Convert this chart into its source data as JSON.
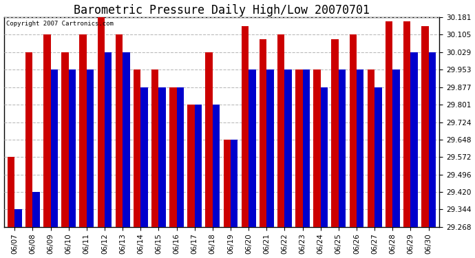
{
  "title": "Barometric Pressure Daily High/Low 20070701",
  "copyright": "Copyright 2007 Cartronics.com",
  "dates": [
    "06/07",
    "06/08",
    "06/09",
    "06/10",
    "06/11",
    "06/12",
    "06/13",
    "06/14",
    "06/15",
    "06/16",
    "06/17",
    "06/18",
    "06/19",
    "06/20",
    "06/21",
    "06/22",
    "06/23",
    "06/24",
    "06/25",
    "06/26",
    "06/27",
    "06/28",
    "06/29",
    "06/30"
  ],
  "highs": [
    29.572,
    30.029,
    30.105,
    30.029,
    30.105,
    30.181,
    30.105,
    29.953,
    29.953,
    29.877,
    29.801,
    30.029,
    29.648,
    30.143,
    30.086,
    30.105,
    29.953,
    29.953,
    30.086,
    30.105,
    29.953,
    30.162,
    30.162,
    30.143
  ],
  "lows": [
    29.344,
    29.42,
    29.953,
    29.953,
    29.953,
    30.029,
    30.029,
    29.877,
    29.877,
    29.877,
    29.801,
    29.801,
    29.648,
    29.953,
    29.953,
    29.953,
    29.953,
    29.877,
    29.953,
    29.953,
    29.877,
    29.953,
    30.029,
    30.029
  ],
  "high_color": "#cc0000",
  "low_color": "#0000cc",
  "bg_color": "#ffffff",
  "plot_bg_color": "#ffffff",
  "grid_color": "#bbbbbb",
  "yticks": [
    29.268,
    29.344,
    29.42,
    29.496,
    29.572,
    29.648,
    29.724,
    29.801,
    29.877,
    29.953,
    30.029,
    30.105,
    30.181
  ],
  "ylim_min": 29.268,
  "ylim_max": 30.181,
  "bar_width": 0.4,
  "title_fontsize": 12,
  "tick_fontsize": 7.5,
  "copyright_fontsize": 6.5
}
